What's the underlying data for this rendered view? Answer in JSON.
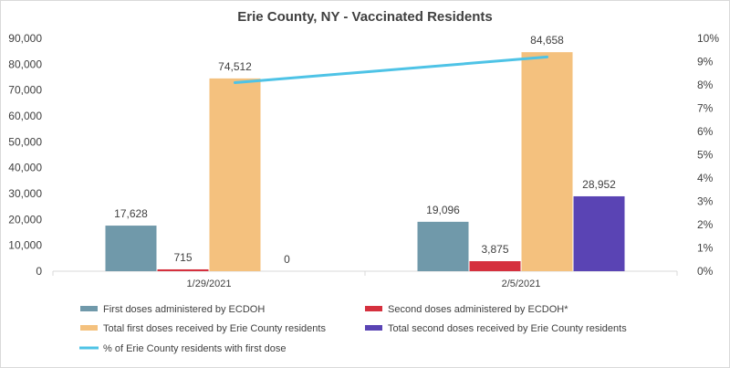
{
  "chart_data": {
    "type": "bar",
    "title": "Erie County, NY - Vaccinated Residents",
    "categories": [
      "1/29/2021",
      "2/5/2021"
    ],
    "series": [
      {
        "name": "First doses administered by ECDOH",
        "type": "bar",
        "axis": "left",
        "color": "#7099aa",
        "values": [
          17628,
          19096
        ],
        "labels": [
          "17,628",
          "19,096"
        ]
      },
      {
        "name": "Second doses administered by ECDOH*",
        "type": "bar",
        "axis": "left",
        "color": "#d5303e",
        "values": [
          715,
          3875
        ],
        "labels": [
          "715",
          "3,875"
        ]
      },
      {
        "name": "Total first doses received by Erie County residents",
        "type": "bar",
        "axis": "left",
        "color": "#f4c17e",
        "values": [
          74512,
          84658
        ],
        "labels": [
          "74,512",
          "84,658"
        ]
      },
      {
        "name": "Total second doses received by Erie County residents",
        "type": "bar",
        "axis": "left",
        "color": "#5a44b4",
        "values": [
          0,
          28952
        ],
        "labels": [
          "0",
          "28,952"
        ]
      },
      {
        "name": "% of Erie County residents with first dose",
        "type": "line",
        "axis": "right",
        "color": "#4ec3e6",
        "values": [
          8.1,
          9.2
        ]
      }
    ],
    "ylim": [
      0,
      90000
    ],
    "yticks": [
      "0",
      "10,000",
      "20,000",
      "30,000",
      "40,000",
      "50,000",
      "60,000",
      "70,000",
      "80,000",
      "90,000"
    ],
    "y2lim": [
      0,
      10
    ],
    "y2ticks": [
      "0%",
      "1%",
      "2%",
      "3%",
      "4%",
      "5%",
      "6%",
      "7%",
      "8%",
      "9%",
      "10%"
    ],
    "gridlines": false,
    "legend_position": "bottom"
  }
}
